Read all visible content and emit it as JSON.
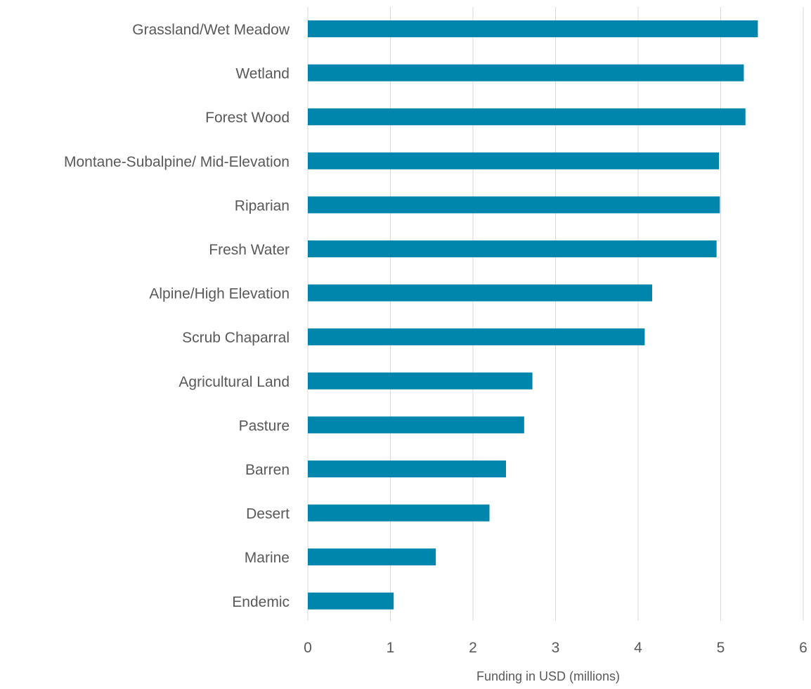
{
  "chart_data": {
    "type": "bar",
    "orientation": "horizontal",
    "categories": [
      "Grassland/Wet Meadow",
      "Wetland",
      "Forest Wood",
      "Montane-Subalpine/ Mid-Elevation",
      "Riparian",
      "Fresh Water",
      "Alpine/High Elevation",
      "Scrub Chaparral",
      "Agricultural Land",
      "Pasture",
      "Barren",
      "Desert",
      "Marine",
      "Endemic"
    ],
    "values": [
      5.45,
      5.28,
      5.3,
      4.98,
      4.99,
      4.95,
      4.17,
      4.08,
      2.72,
      2.62,
      2.4,
      2.2,
      1.55,
      1.04
    ],
    "title": "",
    "xlabel": "Funding in USD (millions)",
    "ylabel": "",
    "xlim": [
      0,
      6
    ],
    "xticks": [
      "0",
      "1",
      "2",
      "3",
      "4",
      "5",
      "6"
    ],
    "grid": "vertical",
    "legend": "none",
    "bar_color": "#0085AD"
  }
}
